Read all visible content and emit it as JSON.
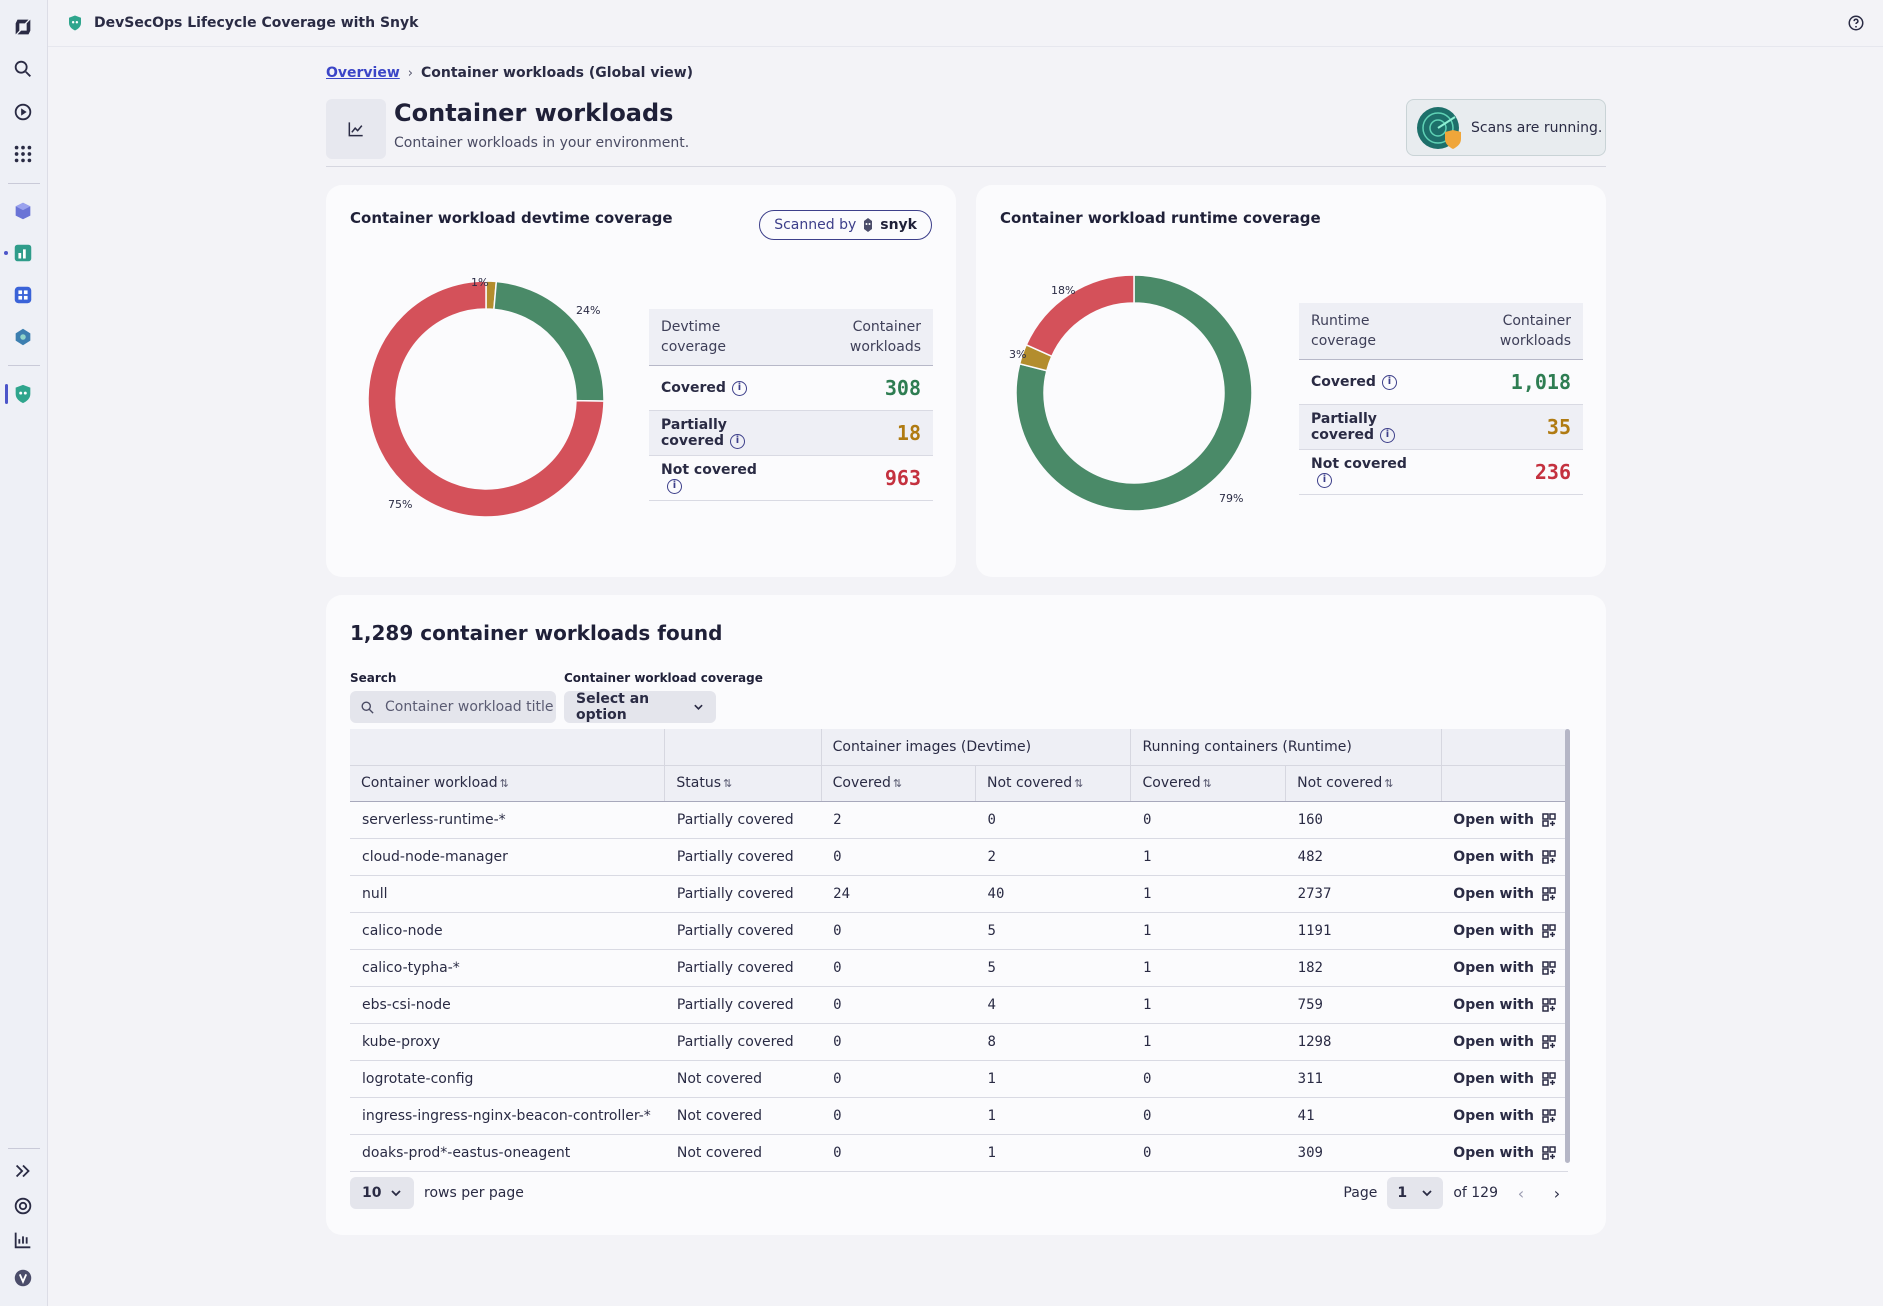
{
  "app": {
    "title": "DevSecOps Lifecycle Coverage with Snyk"
  },
  "breadcrumb": {
    "overview": "Overview",
    "current": "Container workloads (Global view)"
  },
  "header": {
    "title": "Container workloads",
    "subtitle": "Container workloads in your environment."
  },
  "scan_status": {
    "text": "Scans are running."
  },
  "devtime": {
    "title": "Container workload devtime coverage",
    "scanned_by": "Scanned by",
    "brand": "snyk",
    "table_head": {
      "left": "Devtime coverage",
      "right": "Container workloads"
    },
    "rows": [
      {
        "label": "Covered",
        "value": "308"
      },
      {
        "label": "Partially covered",
        "value": "18"
      },
      {
        "label": "Not covered",
        "value": "963"
      }
    ],
    "percents": {
      "covered": "24%",
      "partial": "1%",
      "not": "75%"
    }
  },
  "runtime": {
    "title": "Container workload runtime coverage",
    "table_head": {
      "left": "Runtime coverage",
      "right": "Container workloads"
    },
    "rows": [
      {
        "label": "Covered",
        "value": "1,018"
      },
      {
        "label": "Partially covered",
        "value": "35"
      },
      {
        "label": "Not covered",
        "value": "236"
      }
    ],
    "percents": {
      "covered": "79%",
      "partial": "3%",
      "not": "18%"
    }
  },
  "chart_data": [
    {
      "type": "pie",
      "title": "Container workload devtime coverage",
      "categories": [
        "Covered",
        "Partially covered",
        "Not covered"
      ],
      "values": [
        308,
        18,
        963
      ],
      "labels": [
        "24%",
        "1%",
        "75%"
      ],
      "colors": [
        "#4a8a68",
        "#b38d2d",
        "#d4515a"
      ]
    },
    {
      "type": "pie",
      "title": "Container workload runtime coverage",
      "categories": [
        "Covered",
        "Partially covered",
        "Not covered"
      ],
      "values": [
        1018,
        35,
        236
      ],
      "labels": [
        "79%",
        "3%",
        "18%"
      ],
      "colors": [
        "#4a8a68",
        "#b38d2d",
        "#d4515a"
      ]
    }
  ],
  "workloads": {
    "heading": "1,289 container workloads found",
    "search_label": "Search",
    "search_placeholder": "Container workload title",
    "filter_label": "Container workload coverage",
    "filter_value": "Select an option",
    "group_devtime": "Container images (Devtime)",
    "group_runtime": "Running containers (Runtime)",
    "columns": [
      "Container workload",
      "Status",
      "Covered",
      "Not covered",
      "Covered",
      "Not covered"
    ],
    "open_with": "Open with",
    "rows": [
      [
        "serverless-runtime-*",
        "Partially covered",
        "2",
        "0",
        "0",
        "160"
      ],
      [
        "cloud-node-manager",
        "Partially covered",
        "0",
        "2",
        "1",
        "482"
      ],
      [
        "null",
        "Partially covered",
        "24",
        "40",
        "1",
        "2737"
      ],
      [
        "calico-node",
        "Partially covered",
        "0",
        "5",
        "1",
        "1191"
      ],
      [
        "calico-typha-*",
        "Partially covered",
        "0",
        "5",
        "1",
        "182"
      ],
      [
        "ebs-csi-node",
        "Partially covered",
        "0",
        "4",
        "1",
        "759"
      ],
      [
        "kube-proxy",
        "Partially covered",
        "0",
        "8",
        "1",
        "1298"
      ],
      [
        "logrotate-config",
        "Not covered",
        "0",
        "1",
        "0",
        "311"
      ],
      [
        "ingress-ingress-nginx-beacon-controller-*",
        "Not covered",
        "0",
        "1",
        "0",
        "41"
      ],
      [
        "doaks-prod*-eastus-oneagent",
        "Not covered",
        "0",
        "1",
        "0",
        "309"
      ]
    ],
    "rows_per_page": "10",
    "rows_per_page_label": "rows per page",
    "page_label": "Page",
    "page_value": "1",
    "page_total": "of 129"
  },
  "colors": {
    "accent": "#3b45c7",
    "covered": "#2e7d52",
    "partial": "#b07b12",
    "not_covered": "#c4313f"
  }
}
